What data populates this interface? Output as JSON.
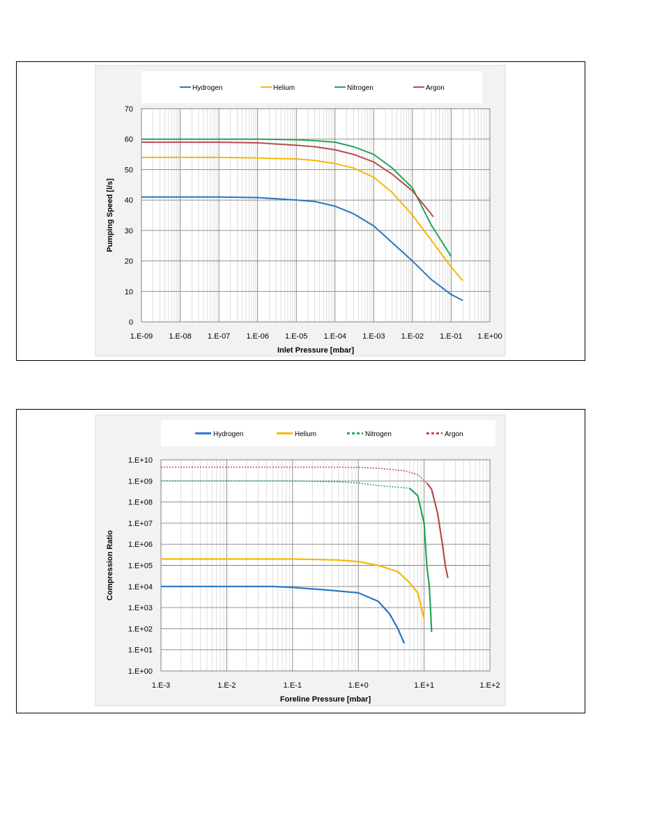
{
  "chart_data": [
    {
      "type": "line",
      "xscale": "log",
      "xlim": [
        1e-09,
        1
      ],
      "ylim": [
        0,
        70
      ],
      "yticks": [
        0,
        10,
        20,
        30,
        40,
        50,
        60,
        70
      ],
      "xtick_labels": [
        "1.E-09",
        "1.E-08",
        "1.E-07",
        "1.E-06",
        "1.E-05",
        "1.E-04",
        "1.E-03",
        "1.E-02",
        "1.E-01",
        "1.E+00"
      ],
      "xlabel": "Inlet Pressure [mbar]",
      "ylabel": "Pumping Speed [l/s]",
      "grid": true,
      "legend": "top",
      "series": [
        {
          "name": "Hydrogen",
          "color": "#2676C2",
          "x": [
            1e-09,
            1e-07,
            1e-06,
            1e-05,
            3e-05,
            0.0001,
            0.0003,
            0.001,
            0.003,
            0.01,
            0.03,
            0.1,
            0.2
          ],
          "y": [
            41,
            41,
            40.8,
            40,
            39.5,
            38,
            35.5,
            31.5,
            26,
            20,
            14,
            9,
            7
          ]
        },
        {
          "name": "Helium",
          "color": "#F5B800",
          "x": [
            1e-09,
            1e-07,
            1e-06,
            1e-05,
            3e-05,
            0.0001,
            0.0003,
            0.001,
            0.003,
            0.01,
            0.03,
            0.1,
            0.2
          ],
          "y": [
            54,
            54,
            53.8,
            53.5,
            53,
            52,
            50.5,
            47.5,
            42.5,
            35,
            27,
            18,
            13.5
          ]
        },
        {
          "name": "Nitrogen",
          "color": "#22A45A",
          "x": [
            1e-09,
            1e-06,
            1e-05,
            3e-05,
            0.0001,
            0.0003,
            0.001,
            0.003,
            0.01,
            0.03,
            0.1
          ],
          "y": [
            60,
            60,
            59.8,
            59.5,
            59,
            57.5,
            55,
            50.5,
            44,
            32,
            21.5
          ]
        },
        {
          "name": "Argon",
          "color": "#B84A4A",
          "x": [
            1e-09,
            1e-07,
            1e-06,
            1e-05,
            3e-05,
            0.0001,
            0.0003,
            0.001,
            0.003,
            0.01,
            0.035
          ],
          "y": [
            59,
            59,
            58.8,
            58,
            57.5,
            56.5,
            55,
            52.5,
            48.5,
            43,
            34.5
          ]
        }
      ]
    },
    {
      "type": "line",
      "xscale": "log",
      "yscale": "log",
      "xlim": [
        0.001,
        100
      ],
      "ylim": [
        1,
        10000000000.0
      ],
      "xtick_labels": [
        "1.E-3",
        "1.E-2",
        "1.E-1",
        "1.E+0",
        "1.E+1",
        "1.E+2"
      ],
      "ytick_labels": [
        "1.E+00",
        "1.E+01",
        "1.E+02",
        "1.E+03",
        "1.E+04",
        "1.E+05",
        "1.E+06",
        "1.E+07",
        "1.E+08",
        "1.E+09",
        "1.E+10"
      ],
      "xlabel": "Foreline Pressure [mbar]",
      "ylabel": "Compression Ratio",
      "grid": true,
      "legend": "top",
      "series": [
        {
          "name": "Hydrogen",
          "color": "#2676C2",
          "style": "solid",
          "x": [
            0.001,
            0.05,
            0.1,
            0.3,
            1,
            2,
            3,
            4,
            5
          ],
          "y": [
            10000.0,
            10000.0,
            9000.0,
            7000.0,
            5000.0,
            2000.0,
            500.0,
            100.0,
            20.0
          ]
        },
        {
          "name": "Helium",
          "color": "#F5B800",
          "style": "solid",
          "x": [
            0.001,
            0.1,
            0.5,
            1,
            2,
            4,
            6,
            8,
            10
          ],
          "y": [
            200000.0,
            200000.0,
            180000.0,
            150000.0,
            100000.0,
            50000.0,
            15000.0,
            5000.0,
            300.0
          ]
        },
        {
          "name": "Nitrogen",
          "color": "#22A45A",
          "style": "dashed",
          "x": [
            0.001,
            0.1,
            0.5,
            1,
            2,
            4,
            6
          ],
          "y": [
            1000000000.0,
            1000000000.0,
            900000000.0,
            800000000.0,
            600000000.0,
            500000000.0,
            450000000.0
          ],
          "x2": [
            6,
            8,
            10,
            11,
            12,
            12.5,
            13
          ],
          "y2": [
            450000000.0,
            200000000.0,
            10000000.0,
            100000.0,
            10000.0,
            1000.0,
            70.0
          ]
        },
        {
          "name": "Argon",
          "color": "#B84A4A",
          "style": "dashed",
          "x": [
            0.001,
            0.1,
            0.5,
            1,
            2,
            5,
            8,
            11
          ],
          "y": [
            4500000000.0,
            4500000000.0,
            4500000000.0,
            4400000000.0,
            4000000000.0,
            3000000000.0,
            2000000000.0,
            800000000.0
          ],
          "x2": [
            11,
            13,
            16,
            19,
            21,
            23
          ],
          "y2": [
            800000000.0,
            400000000.0,
            30000000.0,
            1000000.0,
            100000.0,
            25000.0
          ]
        }
      ]
    }
  ]
}
